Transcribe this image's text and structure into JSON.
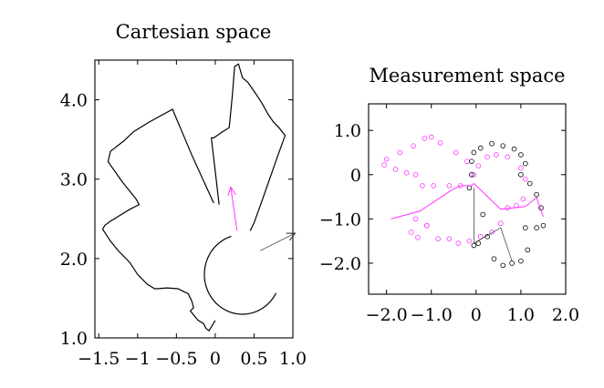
{
  "colors": {
    "ink": "#000000",
    "magenta": "#ff33ff",
    "dark": "#333333"
  },
  "chart_data": [
    {
      "type": "line",
      "title": "Cartesian space",
      "xlim": [
        -1.55,
        1.0
      ],
      "ylim": [
        1.0,
        4.5
      ],
      "xticks": [
        -1.5,
        -1.0,
        -0.5,
        0,
        0.5,
        1.0
      ],
      "xtick_labels": [
        "−1.5",
        "−1",
        "−0.5",
        "0",
        "0.5",
        "1.0"
      ],
      "yticks": [
        1.0,
        2.0,
        3.0,
        4.0
      ],
      "ytick_labels": [
        "1.0",
        "2.0",
        "3.0",
        "4.0"
      ],
      "grid": false,
      "series": [
        {
          "style": "black-line",
          "x": [
            -0.02,
            -0.3,
            -0.55,
            -0.85,
            -1.05,
            -1.18,
            -1.35,
            -1.38,
            -1.2,
            -1.02,
            -0.98,
            -1.1,
            -1.35,
            -1.42,
            -1.45,
            -1.35,
            -1.25,
            -1.1,
            -1.0,
            -0.88,
            -0.78,
            -0.75,
            -0.62,
            -0.48,
            -0.4,
            -0.35,
            -0.32,
            -0.3,
            -0.28,
            -0.32,
            -0.27,
            -0.22,
            -0.15,
            -0.12,
            -0.08,
            0.0
          ],
          "y": [
            2.7,
            3.3,
            3.88,
            3.72,
            3.6,
            3.48,
            3.35,
            3.22,
            2.97,
            2.75,
            2.68,
            2.62,
            2.47,
            2.42,
            2.37,
            2.22,
            2.1,
            1.95,
            1.8,
            1.68,
            1.62,
            1.62,
            1.63,
            1.62,
            1.58,
            1.56,
            1.5,
            1.46,
            1.38,
            1.34,
            1.28,
            1.22,
            1.18,
            1.12,
            1.09,
            1.22
          ]
        },
        {
          "style": "black-line",
          "x": [
            0.05,
            0.0,
            -0.05,
            -0.02,
            0.1,
            0.18,
            0.22,
            0.25,
            0.3,
            0.35,
            0.42,
            0.52,
            0.6,
            0.68,
            0.75,
            0.82,
            0.9,
            0.8,
            0.7,
            0.6,
            0.5,
            0.45
          ],
          "y": [
            2.68,
            3.1,
            3.52,
            3.52,
            3.6,
            3.65,
            4.05,
            4.42,
            4.45,
            4.28,
            4.22,
            4.08,
            3.96,
            3.82,
            3.72,
            3.65,
            3.55,
            3.28,
            3.0,
            2.72,
            2.45,
            2.35
          ]
        },
        {
          "style": "black-arc",
          "center": [
            0.35,
            1.8
          ],
          "radius": 0.49,
          "start_deg": -28,
          "end_deg": -255
        },
        {
          "style": "magenta-arrow",
          "x": [
            0.28,
            0.2
          ],
          "y": [
            2.35,
            2.9
          ]
        },
        {
          "style": "gray-arrow",
          "x": [
            0.58,
            1.03
          ],
          "y": [
            2.1,
            2.32
          ]
        }
      ]
    },
    {
      "type": "scatter",
      "title": "Measurement space",
      "xlim": [
        -2.4,
        2.0
      ],
      "ylim": [
        -2.7,
        1.6
      ],
      "xticks": [
        -2.0,
        -1.0,
        0,
        1.0,
        2.0
      ],
      "xtick_labels": [
        "−2.0",
        "−1.0",
        "0",
        "1.0",
        "2.0"
      ],
      "yticks": [
        -2.0,
        -1.0,
        0,
        1.0
      ],
      "ytick_labels": [
        "−2.0",
        "−1.0",
        "0",
        "1.0"
      ],
      "grid": false,
      "series": [
        {
          "style": "magenta-circles",
          "x": [
            -0.2,
            -0.45,
            -0.8,
            -1.0,
            -1.15,
            -1.4,
            -1.7,
            -2.0,
            -2.05,
            -1.8,
            -1.55,
            -1.35,
            -1.2,
            -0.95,
            -0.6,
            -0.35,
            -1.1,
            -1.3,
            -1.45,
            -1.35,
            -1.1,
            -0.85,
            -0.6,
            -0.4,
            -0.15,
            0.1,
            0.35,
            0.55,
            0.7,
            0.9,
            1.05,
            1.1,
            1.0,
            0.7,
            0.45,
            0.25,
            0.05,
            -0.05
          ],
          "y": [
            0.3,
            0.5,
            0.72,
            0.85,
            0.82,
            0.65,
            0.5,
            0.35,
            0.22,
            0.12,
            0.04,
            0.0,
            -0.25,
            -0.25,
            -0.25,
            -0.25,
            -1.15,
            -1.42,
            -1.3,
            -1.0,
            -1.15,
            -1.45,
            -1.45,
            -1.55,
            -1.5,
            -1.4,
            -1.3,
            -1.1,
            -0.75,
            -0.7,
            -0.55,
            -0.1,
            0.15,
            0.4,
            0.45,
            0.4,
            0.2,
            0.0
          ]
        },
        {
          "style": "black-circles",
          "x": [
            -0.1,
            -0.05,
            0.1,
            0.35,
            0.6,
            0.85,
            1.0,
            1.1,
            1.0,
            1.2,
            1.35,
            1.45,
            1.5,
            1.35,
            1.1,
            1.15,
            1.0,
            0.8,
            0.6,
            0.4,
            0.25,
            0.15,
            0.05,
            -0.05,
            -0.15,
            -0.1
          ],
          "y": [
            0.3,
            0.5,
            0.6,
            0.7,
            0.65,
            0.58,
            0.45,
            0.25,
            0.0,
            -0.2,
            -0.45,
            -0.75,
            -1.15,
            -1.2,
            -1.2,
            -1.7,
            -1.95,
            -2.0,
            -2.05,
            -1.9,
            -1.4,
            -0.9,
            -1.55,
            -1.6,
            -0.3,
            0.0
          ]
        },
        {
          "style": "magenta-line",
          "x": [
            -1.9,
            -1.25,
            -0.55,
            -0.35,
            -0.1,
            -0.05,
            0.55,
            1.1,
            1.35,
            1.5
          ],
          "y": [
            -1.0,
            -0.82,
            -0.35,
            -0.25,
            -0.25,
            -0.2,
            -0.78,
            -0.72,
            -0.52,
            -0.95
          ]
        },
        {
          "style": "gray-line",
          "x": [
            -0.05,
            -0.05,
            0.55,
            0.8
          ],
          "y": [
            -0.3,
            -1.55,
            -1.2,
            -1.95
          ]
        }
      ]
    }
  ]
}
